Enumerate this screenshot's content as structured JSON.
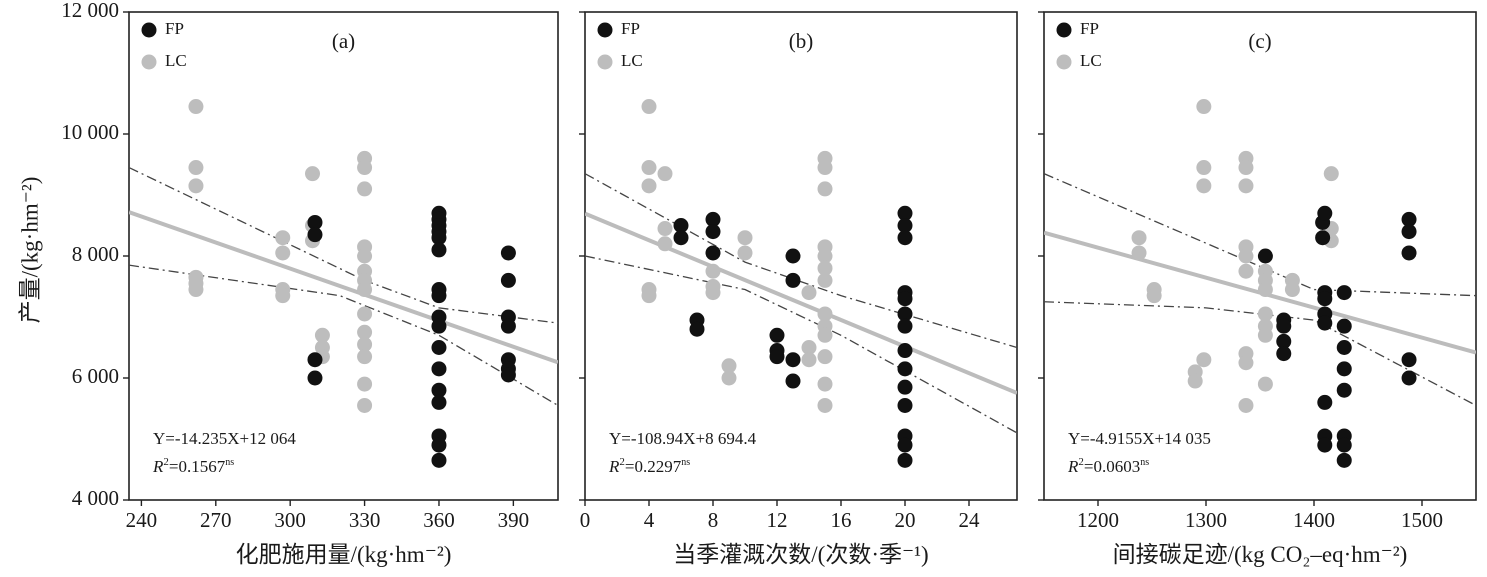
{
  "figure": {
    "ylabel_shared": "产量/(kg·hm⁻²)",
    "legend_items": [
      {
        "name": "FP",
        "color": "#111111"
      },
      {
        "name": "LC",
        "color": "#bdbdbd"
      }
    ],
    "colors": {
      "fp": "#111111",
      "lc": "#bdbdbd",
      "fit_line": "#bcbcbc",
      "ci_line": "#444444",
      "frame": "#222222"
    }
  },
  "chart_data": [
    {
      "type": "scatter",
      "panel_label": "(a)",
      "xlabel": "化肥施用量/(kg·hm⁻²)",
      "xlim": [
        235,
        408
      ],
      "ylim": [
        4000,
        12000
      ],
      "xticks": [
        240,
        270,
        300,
        330,
        360,
        390
      ],
      "yticks": [
        4000,
        6000,
        8000,
        10000,
        12000
      ],
      "ytick_labels": [
        "4 000",
        "6 000",
        "8 000",
        "10 000",
        "12 000"
      ],
      "equation": "Y=-14.235X+12 064",
      "r2_prefix": "=0.1567",
      "r2_sup": "ns",
      "fit": {
        "slope": -14.235,
        "intercept": 12064
      },
      "ci_upper": [
        [
          235,
          9450
        ],
        [
          330,
          7600
        ],
        [
          360,
          7150
        ],
        [
          408,
          6900
        ]
      ],
      "ci_lower": [
        [
          235,
          7850
        ],
        [
          320,
          7350
        ],
        [
          360,
          6700
        ],
        [
          408,
          5550
        ]
      ],
      "series": [
        {
          "name": "FP",
          "points": [
            [
              310,
              8550
            ],
            [
              310,
              8350
            ],
            [
              310,
              6300
            ],
            [
              310,
              6000
            ],
            [
              360,
              8700
            ],
            [
              360,
              8600
            ],
            [
              360,
              8500
            ],
            [
              360,
              8400
            ],
            [
              360,
              8300
            ],
            [
              360,
              8100
            ],
            [
              360,
              7450
            ],
            [
              360,
              7350
            ],
            [
              360,
              7000
            ],
            [
              360,
              6850
            ],
            [
              360,
              6500
            ],
            [
              360,
              6150
            ],
            [
              360,
              5800
            ],
            [
              360,
              5600
            ],
            [
              360,
              5050
            ],
            [
              360,
              4900
            ],
            [
              360,
              4650
            ],
            [
              388,
              8050
            ],
            [
              388,
              7600
            ],
            [
              388,
              7000
            ],
            [
              388,
              6850
            ],
            [
              388,
              6300
            ],
            [
              388,
              6150
            ],
            [
              388,
              6050
            ]
          ]
        },
        {
          "name": "LC",
          "points": [
            [
              262,
              10450
            ],
            [
              262,
              9450
            ],
            [
              262,
              9150
            ],
            [
              262,
              7650
            ],
            [
              262,
              7550
            ],
            [
              262,
              7450
            ],
            [
              297,
              8300
            ],
            [
              297,
              8050
            ],
            [
              297,
              7450
            ],
            [
              297,
              7350
            ],
            [
              309,
              9350
            ],
            [
              309,
              8500
            ],
            [
              309,
              8250
            ],
            [
              313,
              6700
            ],
            [
              313,
              6500
            ],
            [
              313,
              6350
            ],
            [
              330,
              9600
            ],
            [
              330,
              9450
            ],
            [
              330,
              9100
            ],
            [
              330,
              8150
            ],
            [
              330,
              8000
            ],
            [
              330,
              7750
            ],
            [
              330,
              7600
            ],
            [
              330,
              7450
            ],
            [
              330,
              7050
            ],
            [
              330,
              6750
            ],
            [
              330,
              6550
            ],
            [
              330,
              6350
            ],
            [
              330,
              5900
            ],
            [
              330,
              5550
            ]
          ]
        }
      ]
    },
    {
      "type": "scatter",
      "panel_label": "(b)",
      "xlabel": "当季灌溉次数/(次数·季⁻¹)",
      "xlim": [
        0,
        27
      ],
      "ylim": [
        4000,
        12000
      ],
      "xticks": [
        0,
        4,
        8,
        12,
        16,
        20,
        24
      ],
      "yticks": [
        4000,
        6000,
        8000,
        10000,
        12000
      ],
      "equation": "Y=-108.94X+8 694.4",
      "r2_prefix": "=0.2297",
      "r2_sup": "ns",
      "fit": {
        "slope": -108.94,
        "intercept": 8694.4
      },
      "ci_upper": [
        [
          0,
          9350
        ],
        [
          10,
          7900
        ],
        [
          16,
          7350
        ],
        [
          27,
          6500
        ]
      ],
      "ci_lower": [
        [
          0,
          8000
        ],
        [
          10,
          7450
        ],
        [
          16,
          6700
        ],
        [
          27,
          5100
        ]
      ],
      "series": [
        {
          "name": "FP",
          "points": [
            [
              6,
              8500
            ],
            [
              6,
              8300
            ],
            [
              8,
              8600
            ],
            [
              8,
              8400
            ],
            [
              8,
              8050
            ],
            [
              7,
              6950
            ],
            [
              7,
              6800
            ],
            [
              12,
              6700
            ],
            [
              12,
              6450
            ],
            [
              12,
              6350
            ],
            [
              13,
              8000
            ],
            [
              13,
              7600
            ],
            [
              13,
              6300
            ],
            [
              13,
              5950
            ],
            [
              20,
              8700
            ],
            [
              20,
              8500
            ],
            [
              20,
              8300
            ],
            [
              20,
              7400
            ],
            [
              20,
              7300
            ],
            [
              20,
              7050
            ],
            [
              20,
              6850
            ],
            [
              20,
              6450
            ],
            [
              20,
              6150
            ],
            [
              20,
              5850
            ],
            [
              20,
              5550
            ],
            [
              20,
              5050
            ],
            [
              20,
              4900
            ],
            [
              20,
              4650
            ]
          ]
        },
        {
          "name": "LC",
          "points": [
            [
              4,
              10450
            ],
            [
              4,
              9450
            ],
            [
              4,
              9150
            ],
            [
              4,
              7450
            ],
            [
              4,
              7350
            ],
            [
              5,
              9350
            ],
            [
              5,
              8450
            ],
            [
              5,
              8200
            ],
            [
              8,
              7750
            ],
            [
              8,
              7500
            ],
            [
              8,
              7400
            ],
            [
              10,
              8300
            ],
            [
              10,
              8050
            ],
            [
              9,
              6200
            ],
            [
              9,
              6000
            ],
            [
              14,
              7400
            ],
            [
              14,
              6500
            ],
            [
              14,
              6300
            ],
            [
              15,
              9600
            ],
            [
              15,
              9450
            ],
            [
              15,
              9100
            ],
            [
              15,
              8150
            ],
            [
              15,
              8000
            ],
            [
              15,
              7800
            ],
            [
              15,
              7600
            ],
            [
              15,
              7050
            ],
            [
              15,
              6850
            ],
            [
              15,
              6700
            ],
            [
              15,
              6350
            ],
            [
              15,
              5900
            ],
            [
              15,
              5550
            ]
          ]
        }
      ]
    },
    {
      "type": "scatter",
      "panel_label": "(c)",
      "xlabel": "间接碳足迹/(kg CO₂–eq·hm⁻²)",
      "xlim": [
        1150,
        1550
      ],
      "ylim": [
        4000,
        12000
      ],
      "xticks": [
        1200,
        1300,
        1400,
        1500
      ],
      "yticks": [
        4000,
        6000,
        8000,
        10000,
        12000
      ],
      "equation": "Y=-4.9155X+14 035",
      "r2_prefix": "=0.0603",
      "r2_sup": "ns",
      "fit": {
        "slope": -4.9155,
        "intercept": 14035
      },
      "ci_upper": [
        [
          1150,
          9350
        ],
        [
          1400,
          7450
        ],
        [
          1550,
          7350
        ]
      ],
      "ci_lower": [
        [
          1150,
          7250
        ],
        [
          1300,
          7150
        ],
        [
          1400,
          6950
        ],
        [
          1550,
          5550
        ]
      ],
      "series": [
        {
          "name": "FP",
          "points": [
            [
              1355,
              8000
            ],
            [
              1372,
              6950
            ],
            [
              1372,
              6850
            ],
            [
              1372,
              6600
            ],
            [
              1372,
              6400
            ],
            [
              1408,
              8550
            ],
            [
              1408,
              8300
            ],
            [
              1410,
              8700
            ],
            [
              1410,
              7400
            ],
            [
              1410,
              7300
            ],
            [
              1410,
              7050
            ],
            [
              1410,
              6900
            ],
            [
              1410,
              5600
            ],
            [
              1410,
              5050
            ],
            [
              1410,
              4900
            ],
            [
              1428,
              7400
            ],
            [
              1428,
              6850
            ],
            [
              1428,
              6500
            ],
            [
              1428,
              6150
            ],
            [
              1428,
              5800
            ],
            [
              1428,
              5050
            ],
            [
              1428,
              4900
            ],
            [
              1428,
              4650
            ],
            [
              1488,
              8600
            ],
            [
              1488,
              8400
            ],
            [
              1488,
              8050
            ],
            [
              1488,
              6300
            ],
            [
              1488,
              6000
            ]
          ]
        },
        {
          "name": "LC",
          "points": [
            [
              1238,
              8300
            ],
            [
              1238,
              8050
            ],
            [
              1252,
              7450
            ],
            [
              1252,
              7350
            ],
            [
              1290,
              6100
            ],
            [
              1290,
              5950
            ],
            [
              1298,
              10450
            ],
            [
              1298,
              9450
            ],
            [
              1298,
              9150
            ],
            [
              1298,
              6300
            ],
            [
              1337,
              9600
            ],
            [
              1337,
              9450
            ],
            [
              1337,
              9150
            ],
            [
              1337,
              8150
            ],
            [
              1337,
              8000
            ],
            [
              1337,
              7750
            ],
            [
              1337,
              6400
            ],
            [
              1337,
              6250
            ],
            [
              1337,
              5550
            ],
            [
              1355,
              7750
            ],
            [
              1355,
              7600
            ],
            [
              1355,
              7450
            ],
            [
              1355,
              7050
            ],
            [
              1355,
              6850
            ],
            [
              1355,
              6700
            ],
            [
              1355,
              5900
            ],
            [
              1380,
              7600
            ],
            [
              1380,
              7450
            ],
            [
              1416,
              9350
            ],
            [
              1416,
              8450
            ],
            [
              1416,
              8250
            ]
          ]
        }
      ]
    }
  ]
}
